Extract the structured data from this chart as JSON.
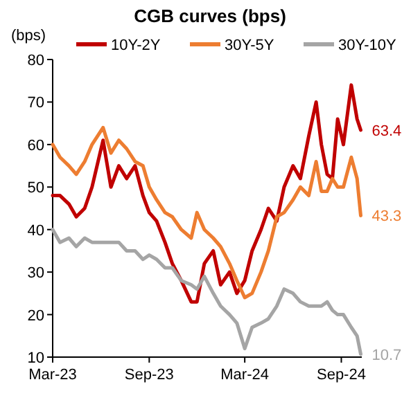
{
  "chart_data": {
    "type": "line",
    "title": "CGB curves (bps)",
    "ylabel": "(bps)",
    "x": [
      "2023-03-01",
      "2023-03-15",
      "2023-04-01",
      "2023-04-15",
      "2023-05-01",
      "2023-05-15",
      "2023-06-05",
      "2023-06-20",
      "2023-07-05",
      "2023-07-20",
      "2023-08-05",
      "2023-08-20",
      "2023-09-01",
      "2023-09-15",
      "2023-10-01",
      "2023-10-15",
      "2023-11-01",
      "2023-11-20",
      "2023-12-01",
      "2023-12-15",
      "2024-01-01",
      "2024-01-15",
      "2024-02-01",
      "2024-02-15",
      "2024-03-01",
      "2024-03-15",
      "2024-04-01",
      "2024-04-15",
      "2024-05-01",
      "2024-05-15",
      "2024-06-01",
      "2024-06-15",
      "2024-07-01",
      "2024-07-15",
      "2024-07-25",
      "2024-08-05",
      "2024-08-15",
      "2024-08-25",
      "2024-09-05",
      "2024-09-20",
      "2024-10-01",
      "2024-10-08"
    ],
    "series": [
      {
        "name": "10Y-2Y",
        "color": "#c00000",
        "values": [
          48,
          48,
          46,
          43,
          45,
          50,
          61,
          50,
          55,
          52,
          55,
          48,
          44,
          42,
          37,
          32,
          28,
          23,
          23,
          32,
          35,
          27,
          30,
          25,
          28,
          35,
          40,
          45,
          42,
          50,
          55,
          52,
          62,
          70,
          60,
          53,
          52,
          66,
          60,
          74,
          66,
          63.4
        ],
        "value_labels": [
          null,
          null,
          null,
          null,
          null,
          null,
          null,
          null,
          null,
          null,
          null,
          null,
          null,
          null,
          null,
          null,
          null,
          null,
          null,
          null,
          null,
          null,
          null,
          null,
          null,
          null,
          null,
          null,
          null,
          null,
          null,
          null,
          null,
          null,
          null,
          null,
          null,
          null,
          null,
          null,
          null,
          "63.4"
        ]
      },
      {
        "name": "30Y-5Y",
        "color": "#ed7d31",
        "values": [
          60,
          57,
          55,
          53,
          56,
          60,
          64,
          58,
          61,
          59,
          56,
          55,
          50,
          47,
          44,
          43,
          40,
          38,
          44,
          40,
          38,
          36,
          32,
          28,
          24,
          25,
          30,
          35,
          43,
          44,
          47,
          50,
          48,
          56,
          49,
          49,
          52,
          50,
          50,
          57,
          52,
          43.3
        ],
        "value_labels": [
          null,
          null,
          null,
          null,
          null,
          null,
          null,
          null,
          null,
          null,
          null,
          null,
          null,
          null,
          null,
          null,
          null,
          null,
          null,
          null,
          null,
          null,
          null,
          null,
          null,
          null,
          null,
          null,
          null,
          null,
          null,
          null,
          null,
          null,
          null,
          null,
          null,
          null,
          null,
          null,
          null,
          "43.3"
        ]
      },
      {
        "name": "30Y-10Y",
        "color": "#a5a5a5",
        "values": [
          40,
          37,
          38,
          36,
          38,
          37,
          37,
          37,
          37,
          35,
          35,
          33,
          34,
          33,
          31,
          31,
          28,
          27,
          26,
          29,
          25,
          22,
          20,
          18,
          12,
          17,
          18,
          19,
          22,
          26,
          25,
          23,
          22,
          22,
          22,
          23,
          21,
          20,
          20,
          17,
          15,
          10.7
        ],
        "value_labels": [
          null,
          null,
          null,
          null,
          null,
          null,
          null,
          null,
          null,
          null,
          null,
          null,
          null,
          null,
          null,
          null,
          null,
          null,
          null,
          null,
          null,
          null,
          null,
          null,
          null,
          null,
          null,
          null,
          null,
          null,
          null,
          null,
          null,
          null,
          null,
          null,
          null,
          null,
          null,
          null,
          null,
          "10.7"
        ]
      }
    ],
    "xlim": [
      "2023-03-01",
      "2024-10-10"
    ],
    "xticks": [
      {
        "value": "2023-03-01",
        "label": "Mar-23"
      },
      {
        "value": "2023-09-01",
        "label": "Sep-23"
      },
      {
        "value": "2024-03-01",
        "label": "Mar-24"
      },
      {
        "value": "2024-09-01",
        "label": "Sep-24"
      }
    ],
    "ylim": [
      10,
      80
    ],
    "yticks": [
      10,
      20,
      30,
      40,
      50,
      60,
      70,
      80
    ],
    "legend": "top",
    "grid": false
  }
}
